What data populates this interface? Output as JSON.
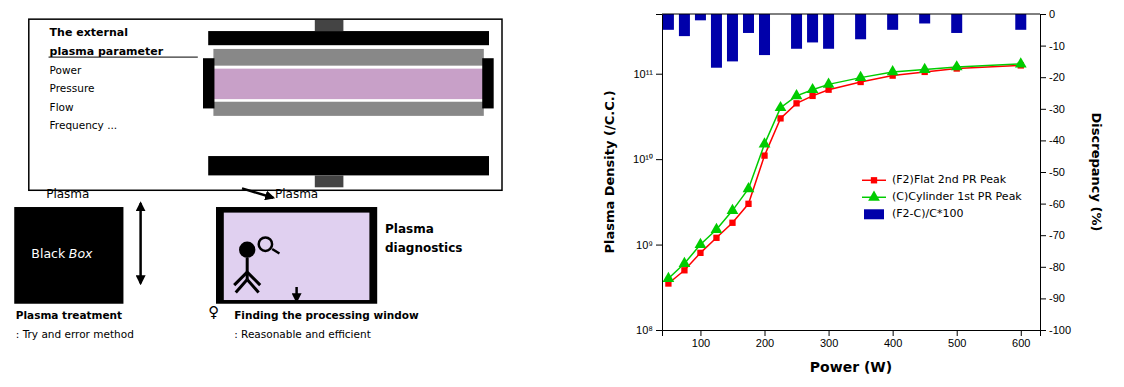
{
  "chart_data": {
    "type": "line",
    "x": [
      50,
      75,
      100,
      125,
      150,
      175,
      200,
      225,
      250,
      275,
      300,
      350,
      400,
      450,
      500,
      600
    ],
    "xlabel": "Power (W)",
    "ylabel": "Plasma Density (/C.C.)",
    "y2label": "Discrepancy (%)",
    "series": [
      {
        "name": "(F2)Flat 2nd PR Peak",
        "type": "line",
        "color": "#FF0000",
        "marker": "square",
        "values": [
          350000000,
          500000000,
          800000000,
          1200000000,
          1800000000,
          3000000000,
          11000000000,
          30000000000,
          45000000000,
          55000000000,
          65000000000,
          80000000000,
          95000000000,
          105000000000,
          115000000000,
          125000000000
        ]
      },
      {
        "name": "(C)Cylinder 1st PR Peak",
        "type": "line",
        "color": "#00CC00",
        "marker": "triangle",
        "values": [
          400000000,
          600000000,
          1000000000,
          1500000000,
          2500000000,
          4500000000,
          15000000000,
          40000000000,
          55000000000,
          65000000000,
          75000000000,
          90000000000,
          105000000000,
          112000000000,
          120000000000,
          130000000000
        ]
      },
      {
        "name": "(F2-C)/C*100",
        "type": "bar",
        "axis": "y2",
        "color": "#0000AA",
        "values": [
          -5,
          -7,
          -2,
          -17,
          -15,
          -6,
          -13,
          null,
          -11,
          -9,
          -11,
          -8,
          -5,
          -3,
          -6,
          -5
        ]
      }
    ],
    "xlim": [
      40,
      630
    ],
    "xticks": [
      100,
      200,
      300,
      400,
      500,
      600
    ],
    "ylim": [
      100000000,
      500000000000
    ],
    "yticks": [
      {
        "value": 100000000,
        "label": "10⁸"
      },
      {
        "value": 1000000000,
        "label": "10⁹"
      },
      {
        "value": 10000000000,
        "label": "10¹⁰"
      },
      {
        "value": 100000000000,
        "label": "10¹¹"
      }
    ],
    "y2lim": [
      -100,
      0
    ],
    "y2ticks": [
      0,
      -10,
      -20,
      -30,
      -40,
      -50,
      -60,
      -70,
      -80,
      -90,
      -100
    ],
    "log": "y",
    "grid": false,
    "legend": "right",
    "annotations": [
      "The external",
      "plasma parameter",
      "Power",
      "Pressure",
      "Flow",
      "Frequency ...",
      "Plasma",
      "Black",
      "Box",
      "Plasma treatment",
      ": Try and error method",
      "Plasma",
      "Plasma",
      "diagnostics",
      "♀",
      "Finding the processing window",
      ": Reasonable and efficient"
    ]
  }
}
